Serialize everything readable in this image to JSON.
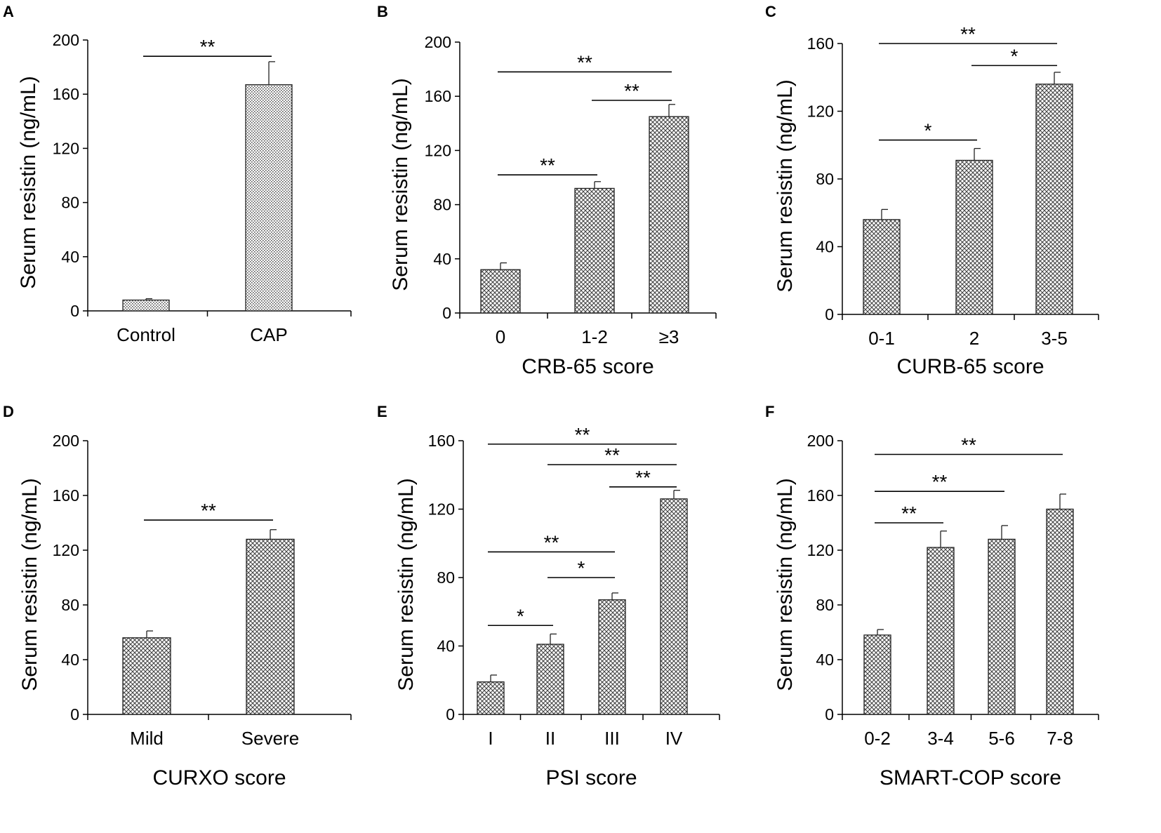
{
  "chart_data": [
    {
      "panel": "A",
      "type": "bar",
      "title": "",
      "xlabel": "",
      "ylabel": "Serum resistin (ng/mL)",
      "categories": [
        "Control",
        "CAP"
      ],
      "values": [
        8,
        167
      ],
      "errors": [
        1,
        17
      ],
      "ylim": [
        0,
        200
      ],
      "yticks": [
        0,
        40,
        80,
        120,
        160,
        200
      ],
      "fill": "dots",
      "significance": [
        {
          "from": 0,
          "to": 1,
          "y": 188,
          "label": "**"
        }
      ]
    },
    {
      "panel": "B",
      "type": "bar",
      "title": "",
      "xlabel": "CRB-65 score",
      "ylabel": "Serum resistin (ng/mL)",
      "categories": [
        "0",
        "1-2",
        "≥3"
      ],
      "values": [
        32,
        92,
        145
      ],
      "errors": [
        5,
        5,
        9
      ],
      "ylim": [
        0,
        200
      ],
      "yticks": [
        0,
        40,
        80,
        120,
        160,
        200
      ],
      "fill": "cross",
      "significance": [
        {
          "from": 0,
          "to": 2,
          "y": 178,
          "label": "**"
        },
        {
          "from": 1,
          "to": 2,
          "y": 157,
          "label": "**"
        },
        {
          "from": 0,
          "to": 1,
          "y": 102,
          "label": "**"
        }
      ]
    },
    {
      "panel": "C",
      "type": "bar",
      "title": "",
      "xlabel": "CURB-65 score",
      "ylabel": "Serum resistin (ng/mL)",
      "categories": [
        "0-1",
        "2",
        "3-5"
      ],
      "values": [
        56,
        91,
        136
      ],
      "errors": [
        6,
        7,
        7
      ],
      "ylim": [
        0,
        160
      ],
      "yticks": [
        0,
        40,
        80,
        120,
        160
      ],
      "fill": "cross",
      "significance": [
        {
          "from": 0,
          "to": 2,
          "y": 160,
          "label": "**"
        },
        {
          "from": 1,
          "to": 2,
          "y": 147,
          "label": "*"
        },
        {
          "from": 0,
          "to": 1,
          "y": 103,
          "label": "*"
        }
      ]
    },
    {
      "panel": "D",
      "type": "bar",
      "title": "",
      "xlabel": "CURXO score",
      "ylabel": "Serum resistin (ng/mL)",
      "categories": [
        "Mild",
        "Severe"
      ],
      "values": [
        56,
        128
      ],
      "errors": [
        5,
        7
      ],
      "ylim": [
        0,
        200
      ],
      "yticks": [
        0,
        40,
        80,
        120,
        160,
        200
      ],
      "fill": "cross",
      "significance": [
        {
          "from": 0,
          "to": 1,
          "y": 142,
          "label": "**"
        }
      ]
    },
    {
      "panel": "E",
      "type": "bar",
      "title": "",
      "xlabel": "PSI score",
      "ylabel": "Serum resistin (ng/mL)",
      "categories": [
        "I",
        "II",
        "III",
        "IV"
      ],
      "values": [
        19,
        41,
        67,
        126
      ],
      "errors": [
        4,
        6,
        4,
        5
      ],
      "ylim": [
        0,
        160
      ],
      "yticks": [
        0,
        40,
        80,
        120,
        160
      ],
      "fill": "cross",
      "significance": [
        {
          "from": 0,
          "to": 3,
          "y": 158,
          "label": "**"
        },
        {
          "from": 1,
          "to": 3,
          "y": 146,
          "label": "**"
        },
        {
          "from": 2,
          "to": 3,
          "y": 133,
          "label": "**"
        },
        {
          "from": 0,
          "to": 2,
          "y": 95,
          "label": "**"
        },
        {
          "from": 1,
          "to": 2,
          "y": 80,
          "label": "*"
        },
        {
          "from": 0,
          "to": 1,
          "y": 52,
          "label": "*"
        }
      ]
    },
    {
      "panel": "F",
      "type": "bar",
      "title": "",
      "xlabel": "SMART-COP score",
      "ylabel": "Serum resistin (ng/mL)",
      "categories": [
        "0-2",
        "3-4",
        "5-6",
        "7-8"
      ],
      "values": [
        58,
        122,
        128,
        150
      ],
      "errors": [
        4,
        12,
        10,
        11
      ],
      "ylim": [
        0,
        200
      ],
      "yticks": [
        0,
        40,
        80,
        120,
        160,
        200
      ],
      "fill": "cross",
      "significance": [
        {
          "from": 0,
          "to": 3,
          "y": 190,
          "label": "**"
        },
        {
          "from": 0,
          "to": 2,
          "y": 163,
          "label": "**"
        },
        {
          "from": 0,
          "to": 1,
          "y": 140,
          "label": "**"
        }
      ]
    }
  ]
}
